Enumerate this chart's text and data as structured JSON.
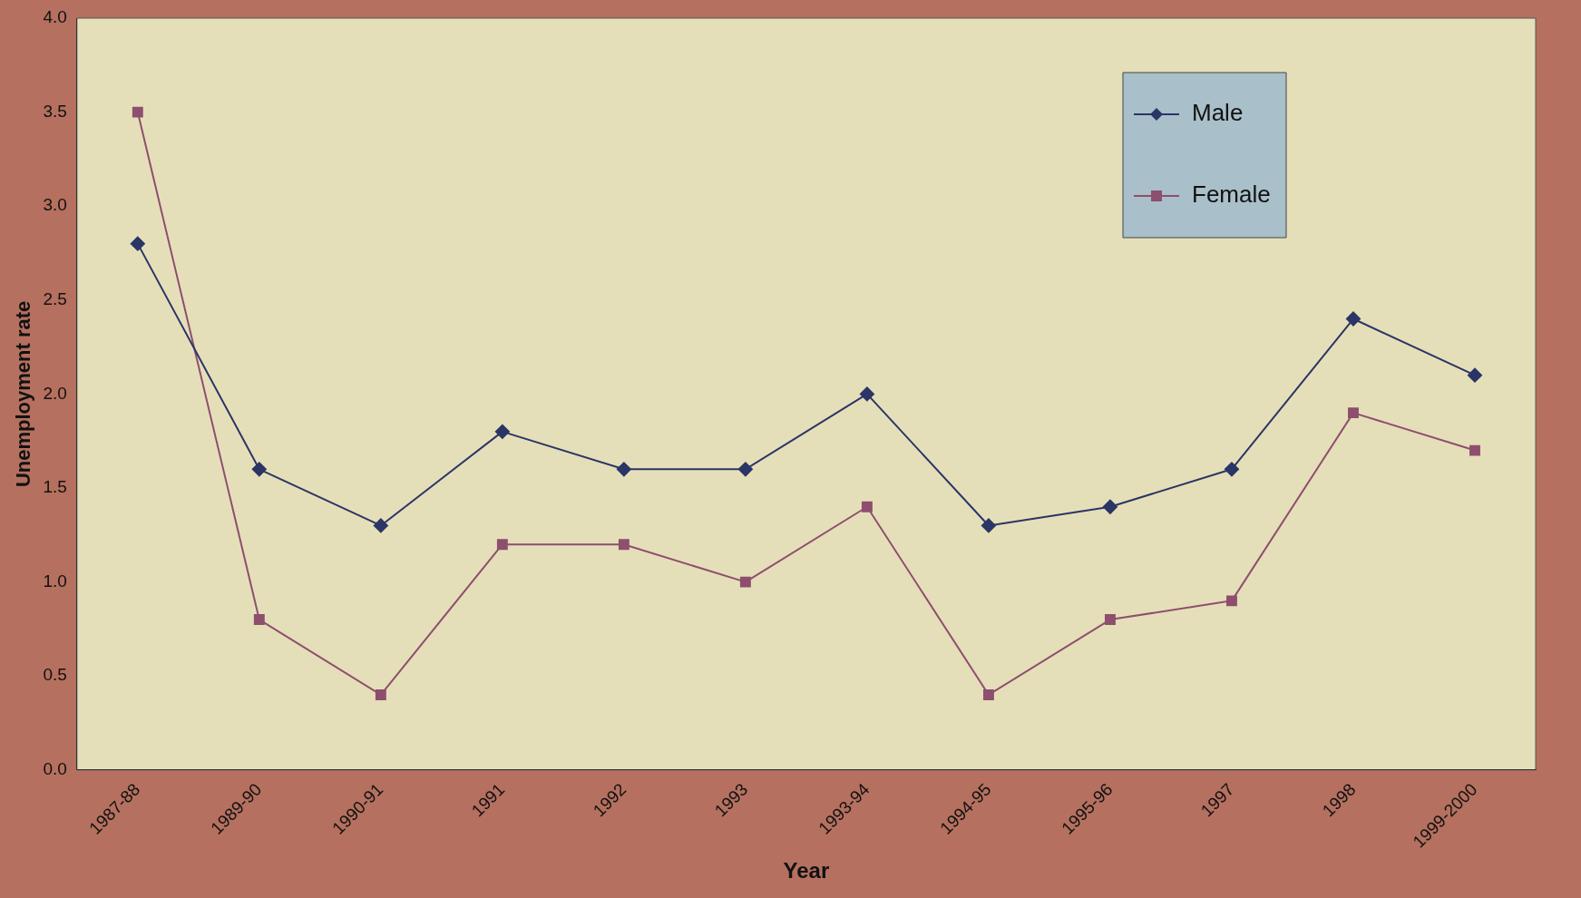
{
  "chart_data": {
    "type": "line",
    "xlabel": "Year",
    "ylabel": "Unemployment rate",
    "categories": [
      "1987-88",
      "1989-90",
      "1990-91",
      "1991",
      "1992",
      "1993",
      "1993-94",
      "1994-95",
      "1995-96",
      "1997",
      "1998",
      "1999-2000"
    ],
    "series": [
      {
        "name": "Male",
        "color": "#2b3566",
        "marker": "diamond",
        "values": [
          2.8,
          1.6,
          1.3,
          1.8,
          1.6,
          1.6,
          2.0,
          1.3,
          1.4,
          1.6,
          2.4,
          2.1
        ]
      },
      {
        "name": "Female",
        "color": "#8e4f6e",
        "marker": "square",
        "values": [
          3.5,
          0.8,
          0.4,
          1.2,
          1.2,
          1.0,
          1.4,
          0.4,
          0.8,
          0.9,
          1.9,
          1.7
        ]
      }
    ],
    "ylim": [
      0,
      4
    ],
    "yticks": [
      {
        "value": 0,
        "label": "0.0"
      },
      {
        "value": 0.5,
        "label": "0.5"
      },
      {
        "value": 1,
        "label": "1.0"
      },
      {
        "value": 1.5,
        "label": "1.5"
      },
      {
        "value": 2,
        "label": "2.0"
      },
      {
        "value": 2.5,
        "label": "2.5"
      },
      {
        "value": 3,
        "label": "3.0"
      },
      {
        "value": 3.5,
        "label": "3.5"
      },
      {
        "value": 4,
        "label": "4.0"
      }
    ],
    "grid": false,
    "legend": "top right",
    "line_style": "solid"
  }
}
